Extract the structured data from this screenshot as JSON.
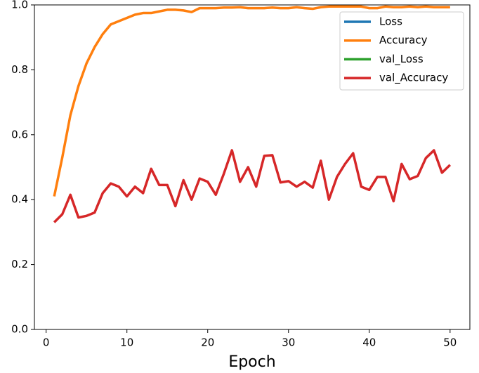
{
  "chart_data": {
    "type": "line",
    "xlabel": "Epoch",
    "x": [
      1,
      2,
      3,
      4,
      5,
      6,
      7,
      8,
      9,
      10,
      11,
      12,
      13,
      14,
      15,
      16,
      17,
      18,
      19,
      20,
      21,
      22,
      23,
      24,
      25,
      26,
      27,
      28,
      29,
      30,
      31,
      32,
      33,
      34,
      35,
      36,
      37,
      38,
      39,
      40,
      41,
      42,
      43,
      44,
      45,
      46,
      47,
      48,
      49,
      50
    ],
    "series": [
      {
        "name": "Loss",
        "color": "#1f77b4",
        "values": [
          null,
          null,
          null,
          null,
          null,
          null,
          null,
          null,
          null,
          null,
          null,
          null,
          null,
          null,
          null,
          null,
          null,
          null,
          null,
          null,
          null,
          null,
          null,
          null,
          null,
          null,
          null,
          null,
          null,
          null,
          null,
          null,
          null,
          null,
          null,
          null,
          null,
          null,
          null,
          null,
          null,
          null,
          null,
          null,
          null,
          null,
          null,
          null,
          null,
          null
        ]
      },
      {
        "name": "Accuracy",
        "color": "#ff7f0e",
        "values": [
          0.41,
          0.53,
          0.66,
          0.75,
          0.82,
          0.87,
          0.91,
          0.94,
          0.95,
          0.96,
          0.97,
          0.975,
          0.975,
          0.98,
          0.985,
          0.985,
          0.983,
          0.978,
          0.99,
          0.99,
          0.99,
          0.992,
          0.992,
          0.993,
          0.99,
          0.99,
          0.99,
          0.992,
          0.99,
          0.99,
          0.993,
          0.99,
          0.988,
          0.993,
          0.995,
          0.995,
          0.995,
          0.995,
          0.995,
          0.99,
          0.99,
          0.995,
          0.993,
          0.993,
          0.995,
          0.993,
          0.995,
          0.993,
          0.993,
          0.993
        ]
      },
      {
        "name": "val_Loss",
        "color": "#2ca02c",
        "values": [
          null,
          null,
          null,
          null,
          null,
          null,
          null,
          null,
          null,
          null,
          null,
          null,
          null,
          null,
          null,
          null,
          null,
          null,
          null,
          null,
          null,
          null,
          null,
          null,
          null,
          null,
          null,
          null,
          null,
          null,
          null,
          null,
          null,
          null,
          null,
          null,
          null,
          null,
          null,
          null,
          null,
          null,
          null,
          null,
          null,
          null,
          null,
          null,
          null,
          null
        ]
      },
      {
        "name": "val_Accuracy",
        "color": "#d62728",
        "values": [
          0.33,
          0.355,
          0.415,
          0.345,
          0.35,
          0.36,
          0.42,
          0.45,
          0.44,
          0.41,
          0.44,
          0.42,
          0.495,
          0.445,
          0.445,
          0.38,
          0.46,
          0.4,
          0.465,
          0.455,
          0.415,
          0.48,
          0.552,
          0.455,
          0.5,
          0.44,
          0.535,
          0.537,
          0.453,
          0.457,
          0.44,
          0.455,
          0.437,
          0.52,
          0.4,
          0.47,
          0.51,
          0.543,
          0.44,
          0.43,
          0.47,
          0.47,
          0.395,
          0.51,
          0.463,
          0.473,
          0.528,
          0.552,
          0.483,
          0.507
        ]
      }
    ],
    "xlim": [
      -1.45,
      52.45
    ],
    "ylim": [
      0,
      1
    ],
    "xticks": [
      0,
      10,
      20,
      30,
      40,
      50
    ],
    "yticks": [
      {
        "value": 0,
        "label": "0.0"
      },
      0.2,
      0.4,
      0.6,
      0.8,
      {
        "value": 1,
        "label": "1.0"
      }
    ],
    "legend": "upper right",
    "grid": false
  }
}
